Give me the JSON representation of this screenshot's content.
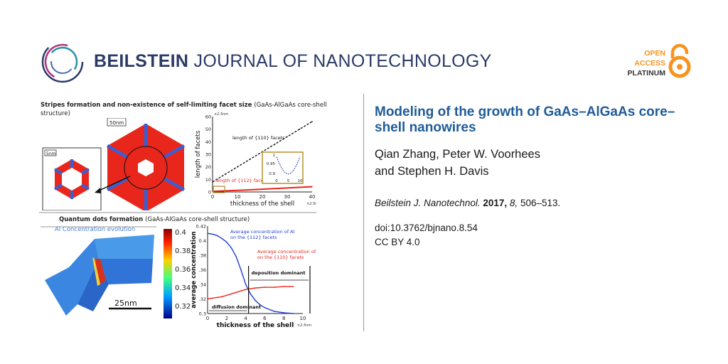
{
  "header": {
    "journal_bold": "BEILSTEIN",
    "journal_rest": " JOURNAL OF NANOTECHNOLOGY",
    "oa_line1": "OPEN",
    "oa_line2": "ACCESS",
    "oa_line3": "PLATINUM"
  },
  "article": {
    "title": "Modeling of the growth of GaAs–AlGaAs core–shell nanowires",
    "authors_line1": "Qian Zhang, Peter W. Voorhees",
    "authors_line2": "and Stephen H. Davis",
    "journal_abbrev": "Beilstein J. Nanotechnol.",
    "year": "2017,",
    "volume": "8,",
    "pages": "506–513.",
    "doi": "doi:10.3762/bjnano.8.54",
    "license": "CC BY 4.0"
  },
  "graphical_abstract": {
    "top_title_bold": "Stripes formation and non-existence of self-limiting facet size",
    "top_title_normal": "(GaAs-AlGaAs core-shell",
    "top_title_line2": "structure)",
    "scale_top": "50nm",
    "scale_small": "5nm",
    "bottom_title_bold": "Quantum dots formation",
    "bottom_title_normal": "(GaAs-AlGaAs core-shell structure)",
    "al_label": "Al Concentration evolution",
    "scale_bottom": "25nm",
    "colorbar_ticks": [
      "0.4",
      "0.38",
      "0.36",
      "0.34",
      "0.32"
    ]
  },
  "colors": {
    "title_blue": "#1f5c9a",
    "journal_navy": "#2b3a67",
    "oa_orange": "#f7931e",
    "facet_red": "#e8261c",
    "facet_blue": "#3a5fd0"
  },
  "chart_data": [
    {
      "type": "line",
      "title": "",
      "xlabel": "thickness of the shell",
      "xunit": "×2.5nm",
      "ylabel": "length of facets",
      "yunit": "×2.5nm",
      "xlim": [
        0,
        40
      ],
      "ylim": [
        0,
        60
      ],
      "xticks": [
        "0",
        "10",
        "20",
        "30",
        "40"
      ],
      "yticks": [
        "0",
        "10",
        "20",
        "30",
        "40",
        "50",
        "60"
      ],
      "series": [
        {
          "name": "length of {110} facets",
          "style": "dashed",
          "color": "#111111",
          "x": [
            0,
            5,
            10,
            15,
            20,
            25,
            30,
            35,
            40
          ],
          "y": [
            8,
            14,
            20,
            26,
            32,
            38,
            44,
            50,
            56
          ]
        },
        {
          "name": "length of {112} facets",
          "style": "solid",
          "color": "#e8261c",
          "x": [
            0,
            5,
            10,
            15,
            20,
            25,
            30,
            35,
            40
          ],
          "y": [
            0.5,
            0.9,
            1.3,
            1.7,
            2.2,
            2.7,
            3.2,
            3.7,
            4.2
          ]
        }
      ],
      "inset": {
        "yticks": [
          "1",
          "0.95",
          "0.9"
        ],
        "xticks": [
          "0",
          "5",
          "10"
        ],
        "series": [
          {
            "name": "inset",
            "style": "dotted",
            "color": "#1f3fbf",
            "x": [
              0,
              1,
              2,
              3,
              4,
              5,
              6,
              7,
              8,
              9,
              10
            ],
            "y": [
              0.99,
              0.96,
              0.935,
              0.915,
              0.903,
              0.9,
              0.903,
              0.915,
              0.935,
              0.96,
              0.99
            ]
          }
        ]
      }
    },
    {
      "type": "line",
      "title": "",
      "xlabel": "thickness of the shell",
      "xunit": "×2.5nm",
      "ylabel": "average concentration",
      "xlim": [
        0,
        10
      ],
      "ylim": [
        0.3,
        0.42
      ],
      "xticks": [
        "0",
        "2",
        "4",
        "6",
        "8",
        "10"
      ],
      "yticks": [
        "0.3",
        ".32",
        ".34",
        ".36",
        ".38",
        "0.4",
        "0.42"
      ],
      "annotations": [
        "deposition dominant",
        "diffusion dominant"
      ],
      "series": [
        {
          "name": "Average concentration of Al on the {112} facets",
          "color": "#2040d0",
          "x": [
            0,
            0.5,
            1,
            1.5,
            2,
            2.5,
            3,
            3.5,
            4,
            4.5,
            5,
            5.5,
            6,
            7,
            8,
            9
          ],
          "y": [
            0.41,
            0.409,
            0.407,
            0.403,
            0.398,
            0.39,
            0.378,
            0.36,
            0.34,
            0.327,
            0.318,
            0.312,
            0.308,
            0.303,
            0.301,
            0.3
          ]
        },
        {
          "name": "Average concentration of Al on the {110} facets",
          "color": "#e8261c",
          "x": [
            0,
            0.5,
            1,
            1.5,
            2,
            2.5,
            3,
            3.5,
            4,
            4.5,
            5,
            6,
            7,
            8,
            9
          ],
          "y": [
            0.32,
            0.321,
            0.322,
            0.323,
            0.325,
            0.327,
            0.329,
            0.331,
            0.333,
            0.334,
            0.335,
            0.336,
            0.336,
            0.337,
            0.337
          ]
        }
      ]
    }
  ]
}
